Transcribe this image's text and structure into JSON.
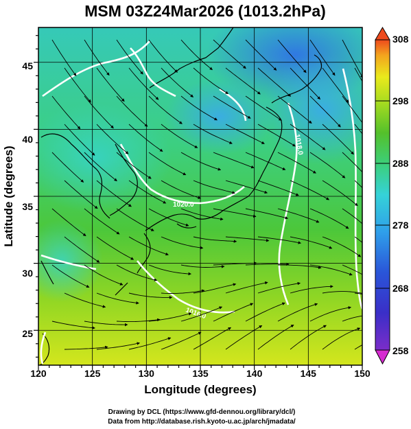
{
  "title": "MSM 03Z24Mar2026 (1013.2hPa)",
  "map": {
    "xlabel": "Longitude (degrees)",
    "ylabel": "Latitude (degrees)",
    "lon_range": [
      120,
      150
    ],
    "lat_range": [
      22.4,
      47.6
    ],
    "lon_ticks": [
      "120",
      "125",
      "130",
      "135",
      "140",
      "145",
      "150"
    ],
    "lat_ticks": [
      "25",
      "30",
      "35",
      "40",
      "45"
    ],
    "grid": true,
    "contour_labels": [
      "1020.0",
      "1018.0",
      "1016.0"
    ],
    "land_outline_color": "#000000",
    "contour_color": "#ffffff",
    "streamline_color": "#000000"
  },
  "colorbar": {
    "range": [
      258,
      308
    ],
    "tick_labels": [
      "308",
      "298",
      "288",
      "278",
      "268",
      "258"
    ],
    "extend": "both",
    "colors": [
      "#d62bd0",
      "#7b2dc9",
      "#2a36c8",
      "#2f8fe6",
      "#35d2d8",
      "#3ccf6a",
      "#54c02b",
      "#a8dc20",
      "#eaea1c",
      "#f3a41e",
      "#ee4a1d"
    ]
  },
  "credits": {
    "line1": "Drawing by DCL (https://www.gfd-dennou.org/library/dcl/)",
    "line2": "Data from http://database.rish.kyoto-u.ac.jp/arch/jmadata/"
  }
}
